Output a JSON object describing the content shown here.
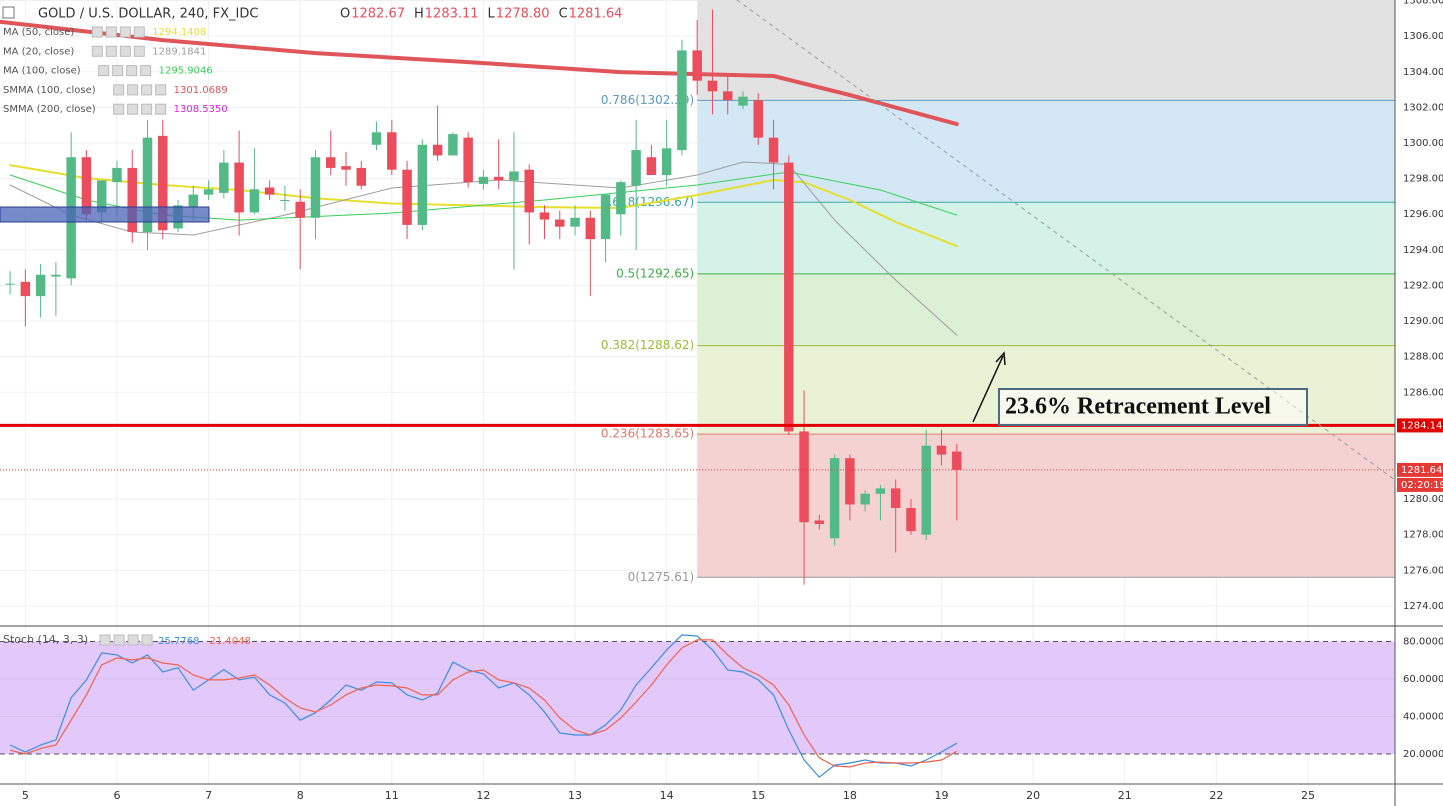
{
  "chart_data": [
    {
      "type": "candlestick",
      "title": "GOLD / U.S. DOLLAR, 240, FX_IDC",
      "ohlc_legend": [
        {
          "key": "O",
          "value": "1282.67"
        },
        {
          "key": "H",
          "value": "1283.11"
        },
        {
          "key": "L",
          "value": "1278.80"
        },
        {
          "key": "C",
          "value": "1281.64"
        }
      ],
      "xlim": [
        -0.66,
        90.7
      ],
      "xticks": [
        {
          "value": 1,
          "label": "5"
        },
        {
          "value": 7,
          "label": "6"
        },
        {
          "value": 13,
          "label": "7"
        },
        {
          "value": 19,
          "label": "8"
        },
        {
          "value": 25,
          "label": "11"
        },
        {
          "value": 31,
          "label": "12"
        },
        {
          "value": 37,
          "label": "13"
        },
        {
          "value": 43,
          "label": "14"
        },
        {
          "value": 49,
          "label": "15"
        },
        {
          "value": 55,
          "label": "18"
        },
        {
          "value": 61,
          "label": "19"
        },
        {
          "value": 67,
          "label": "20"
        },
        {
          "value": 73,
          "label": "21"
        },
        {
          "value": 79,
          "label": "22"
        },
        {
          "value": 85,
          "label": "25"
        }
      ],
      "ylim": [
        1272.93,
        1308.03
      ],
      "yticks": [
        {
          "value": 1274,
          "label": "1274.00"
        },
        {
          "value": 1276,
          "label": "1276.00"
        },
        {
          "value": 1278,
          "label": "1278.00"
        },
        {
          "value": 1280,
          "label": "1280.00"
        },
        {
          "value": 1286,
          "label": "1286.00"
        },
        {
          "value": 1288,
          "label": "1288.00"
        },
        {
          "value": 1290,
          "label": "1290.00"
        },
        {
          "value": 1292,
          "label": "1292.00"
        },
        {
          "value": 1294,
          "label": "1294.00"
        },
        {
          "value": 1296,
          "label": "1296.00"
        },
        {
          "value": 1298,
          "label": "1298.00"
        },
        {
          "value": 1300,
          "label": "1300.00"
        },
        {
          "value": 1302,
          "label": "1302.00"
        },
        {
          "value": 1304,
          "label": "1304.00"
        },
        {
          "value": 1306,
          "label": "1306.00"
        },
        {
          "value": 1308,
          "label": "1308.00"
        }
      ],
      "grid": true,
      "up_color": "#53b987",
      "down_color": "#eb4d5c",
      "open": [
        1292.1,
        1292.2,
        1291.4,
        1292.5,
        1292.4,
        1299.2,
        1296.1,
        1297.8,
        1298.6,
        1295.0,
        1300.4,
        1295.2,
        1296.4,
        1297.1,
        1297.2,
        1298.9,
        1296.1,
        1297.5,
        1296.8,
        1296.7,
        1295.8,
        1299.2,
        1298.7,
        1298.6,
        1299.9,
        1300.6,
        1298.5,
        1295.4,
        1299.9,
        1299.3,
        1300.3,
        1297.7,
        1298.1,
        1297.9,
        1298.5,
        1296.1,
        1295.7,
        1295.3,
        1295.8,
        1294.6,
        1296.0,
        1297.6,
        1299.2,
        1298.2,
        1299.6,
        1305.2,
        1303.5,
        1302.9,
        1302.1,
        1302.4,
        1300.3,
        1298.9,
        1283.8,
        1278.8,
        1277.8,
        1282.3,
        1279.7,
        1280.3,
        1280.6,
        1279.5,
        1278.0,
        1283.0,
        1282.67
      ],
      "high": [
        1292.8,
        1292.9,
        1293.2,
        1293.3,
        1300.6,
        1299.6,
        1297.9,
        1299.0,
        1299.6,
        1301.3,
        1301.3,
        1296.8,
        1297.6,
        1297.9,
        1299.6,
        1300.7,
        1299.7,
        1297.9,
        1297.6,
        1297.4,
        1299.6,
        1300.7,
        1299.5,
        1299.0,
        1301.2,
        1301.3,
        1299.0,
        1300.2,
        1302.1,
        1300.6,
        1300.6,
        1298.5,
        1300.2,
        1300.6,
        1298.8,
        1296.5,
        1296.2,
        1296.5,
        1296.2,
        1297.1,
        1297.9,
        1301.3,
        1299.9,
        1301.3,
        1305.8,
        1306.9,
        1307.5,
        1303.8,
        1302.9,
        1302.8,
        1301.3,
        1299.3,
        1286.1,
        1279.1,
        1282.5,
        1282.5,
        1280.5,
        1280.8,
        1281.1,
        1280.0,
        1283.9,
        1283.9,
        1283.11
      ],
      "low": [
        1291.5,
        1289.7,
        1290.2,
        1290.3,
        1292.0,
        1295.7,
        1295.6,
        1295.9,
        1294.4,
        1294.0,
        1294.6,
        1295.0,
        1295.7,
        1296.8,
        1296.9,
        1294.8,
        1296.0,
        1296.8,
        1296.2,
        1292.9,
        1294.6,
        1298.2,
        1297.6,
        1297.4,
        1299.6,
        1298.2,
        1294.6,
        1295.1,
        1299.0,
        1299.3,
        1297.5,
        1297.4,
        1297.4,
        1292.9,
        1294.3,
        1294.6,
        1294.6,
        1294.8,
        1291.4,
        1293.3,
        1294.8,
        1294.0,
        1298.2,
        1297.6,
        1299.3,
        1302.7,
        1301.6,
        1301.6,
        1301.9,
        1299.9,
        1297.4,
        1283.6,
        1275.2,
        1278.3,
        1277.4,
        1278.8,
        1279.3,
        1278.8,
        1277.0,
        1278.0,
        1277.7,
        1281.9,
        1278.8
      ],
      "close": [
        1292.1,
        1291.4,
        1292.6,
        1292.6,
        1299.2,
        1296.0,
        1297.9,
        1298.6,
        1295.0,
        1300.3,
        1295.1,
        1296.5,
        1297.1,
        1297.4,
        1298.9,
        1296.1,
        1297.4,
        1297.1,
        1296.8,
        1295.8,
        1299.2,
        1298.6,
        1298.5,
        1297.6,
        1300.6,
        1298.5,
        1295.4,
        1299.9,
        1299.3,
        1300.5,
        1297.8,
        1298.1,
        1297.9,
        1298.4,
        1296.1,
        1295.7,
        1295.3,
        1295.8,
        1294.6,
        1297.1,
        1297.8,
        1299.6,
        1298.2,
        1299.7,
        1305.2,
        1303.5,
        1302.9,
        1302.4,
        1302.6,
        1300.3,
        1298.9,
        1283.8,
        1278.7,
        1278.6,
        1282.3,
        1279.7,
        1280.3,
        1280.6,
        1279.5,
        1278.2,
        1283.0,
        1282.5,
        1281.64
      ],
      "indicators": [
        {
          "name": "MA (50, close)",
          "value_label": "1294.1408",
          "color": "#e6df2e",
          "width": 2,
          "x": [
            0,
            5,
            10,
            15,
            20,
            25,
            30,
            35,
            40,
            45,
            50,
            52,
            55,
            58,
            62
          ],
          "values": [
            1298.76,
            1298.03,
            1297.64,
            1297.36,
            1296.9,
            1296.6,
            1296.5,
            1296.4,
            1296.35,
            1297.08,
            1297.92,
            1297.8,
            1296.8,
            1295.56,
            1294.21
          ]
        },
        {
          "name": "MA (20, close)",
          "value_label": "1289.1841",
          "color": "#9e9e9e",
          "width": 1,
          "x": [
            0,
            4,
            8,
            12,
            18,
            25,
            32,
            40,
            45,
            48,
            51,
            54,
            58,
            62
          ],
          "values": [
            1297.64,
            1295.95,
            1295.0,
            1294.83,
            1295.95,
            1297.47,
            1297.92,
            1297.47,
            1298.2,
            1298.93,
            1298.8,
            1295.67,
            1292.3,
            1289.21
          ]
        },
        {
          "name": "MA (100, close)",
          "value_label": "1295.9046",
          "color": "#3ccf5a",
          "width": 1,
          "x": [
            0,
            5,
            10,
            15,
            25,
            35,
            45,
            51,
            57,
            62
          ],
          "values": [
            1298.2,
            1296.8,
            1295.95,
            1295.67,
            1296.07,
            1296.8,
            1297.64,
            1298.37,
            1297.36,
            1295.95
          ]
        },
        {
          "name": "SMMA (100, close)",
          "value_label": "1301.0689",
          "color": "#e0555a",
          "width": 4,
          "x": [
            -0.6,
            10,
            20,
            30,
            40,
            45,
            50,
            55,
            62
          ],
          "values": [
            1306.8,
            1305.78,
            1305.05,
            1304.54,
            1303.98,
            1303.87,
            1303.76,
            1302.69,
            1301.06
          ]
        },
        {
          "name": "SMMA (200, close)",
          "value_label": "1308.5350",
          "color": "#e020e0"
        }
      ],
      "fib_start": 45,
      "fib_levels": [
        {
          "label": "0.786(1302.39)",
          "value": 1302.39,
          "color": "#5b9cbf",
          "fill": "#e2e2e2"
        },
        {
          "label": "0.618(1296.67)",
          "value": 1296.67,
          "color": "#3aa7a0",
          "fill": "#d3e8f4"
        },
        {
          "label": "0.5(1292.65)",
          "value": 1292.65,
          "color": "#3fae49",
          "fill": "#d4f2e8"
        },
        {
          "label": "0.382(1288.62)",
          "value": 1288.62,
          "color": "#9bbb3a",
          "fill": "#dbf0d4"
        },
        {
          "label": "0.236(1283.65)",
          "value": 1283.65,
          "color": "#e07b6f",
          "fill": "#eaf2d6"
        },
        {
          "label": "0(1275.61)",
          "value": 1275.61,
          "color": "#9a9a9a",
          "fill": "#f4d2d2"
        }
      ],
      "price_lines": [
        {
          "label": "1284.14",
          "value": 1284.14,
          "color": "#e00000",
          "style": "solid"
        },
        {
          "label": "1281.64",
          "value": 1281.64,
          "color": "#e53935",
          "style": "dotted",
          "countdown": "02:20:19"
        }
      ],
      "annotation": "23.6% Retracement Level"
    },
    {
      "type": "line",
      "title": "Stoch (14, 3, 3)",
      "xlim": [
        -0.66,
        90.7
      ],
      "ylim": [
        4.0,
        87.7
      ],
      "yticks": [
        {
          "value": 20,
          "label": "20.0000"
        },
        {
          "value": 40,
          "label": "40.0000"
        },
        {
          "value": 60,
          "label": "60.0000"
        },
        {
          "value": 80,
          "label": "80.0000"
        }
      ],
      "band": [
        20,
        80
      ],
      "band_color": "#e3c8fb",
      "series": [
        {
          "value_label": "25.7768",
          "color": "#3c8dde",
          "values": [
            24.8,
            21,
            24.8,
            27.5,
            50,
            59.5,
            73.9,
            72.8,
            68.5,
            72.8,
            63.7,
            66,
            54,
            59.5,
            65,
            59.5,
            61,
            51.5,
            47.2,
            38,
            42,
            48.8,
            56.8,
            54,
            58.4,
            57.9,
            51.5,
            48.8,
            52.5,
            69,
            64.8,
            62.7,
            55.2,
            57.9,
            51.5,
            42.4,
            31.2,
            30.1,
            30.1,
            35.5,
            43.5,
            56.8,
            65.9,
            75.5,
            83.5,
            82.9,
            75.5,
            64.8,
            63.7,
            59.5,
            51.5,
            32.8,
            16.8,
            7.7,
            14.1,
            15.2,
            16.8,
            15.2,
            15.2,
            13.6,
            16.8,
            21.1,
            25.7768
          ]
        },
        {
          "value_label": "21.4048",
          "color": "#f0624a",
          "values": [
            22,
            20,
            23,
            24.8,
            38.1,
            51.5,
            67.5,
            71.2,
            70.1,
            71.2,
            68.5,
            67.5,
            62.1,
            59.5,
            59.5,
            60.5,
            62.1,
            56.8,
            49.9,
            44.5,
            42.4,
            46.1,
            51.5,
            55.2,
            56.8,
            56.3,
            55.2,
            51.5,
            51.5,
            59.5,
            63.7,
            64.8,
            59.5,
            57.9,
            55.2,
            48.8,
            39.2,
            32.8,
            30.1,
            32.8,
            39.2,
            47.7,
            56.8,
            67.5,
            76.5,
            80.8,
            80.8,
            72.8,
            65.9,
            62.1,
            56.8,
            46.1,
            30.1,
            17.9,
            13.6,
            13.1,
            15.2,
            15.7,
            15.2,
            15.2,
            15.7,
            16.8,
            21.4048
          ]
        }
      ]
    }
  ]
}
